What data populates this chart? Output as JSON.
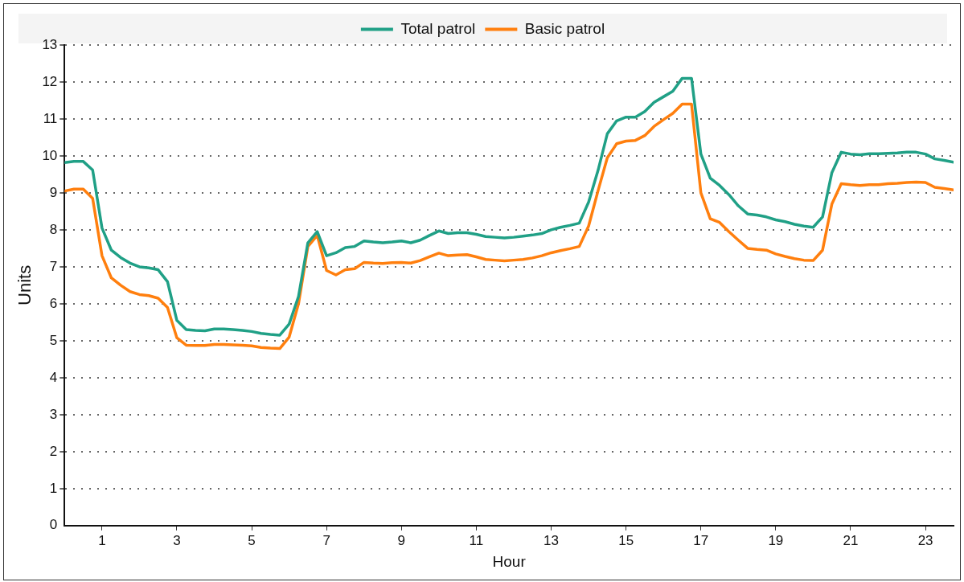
{
  "chart_data": {
    "type": "line",
    "xlabel": "Hour",
    "ylabel": "Units",
    "x": [
      0,
      0.25,
      0.5,
      0.75,
      1,
      1.25,
      1.5,
      1.75,
      2,
      2.25,
      2.5,
      2.75,
      3,
      3.25,
      3.5,
      3.75,
      4,
      4.25,
      4.5,
      4.75,
      5,
      5.25,
      5.5,
      5.75,
      6,
      6.25,
      6.5,
      6.75,
      7,
      7.25,
      7.5,
      7.75,
      8,
      8.25,
      8.5,
      8.75,
      9,
      9.25,
      9.5,
      9.75,
      10,
      10.25,
      10.5,
      10.75,
      11,
      11.25,
      11.5,
      11.75,
      12,
      12.25,
      12.5,
      12.75,
      13,
      13.25,
      13.5,
      13.75,
      14,
      14.25,
      14.5,
      14.75,
      15,
      15.25,
      15.5,
      15.75,
      16,
      16.25,
      16.5,
      16.75,
      17,
      17.25,
      17.5,
      17.75,
      18,
      18.25,
      18.5,
      18.75,
      19,
      19.25,
      19.5,
      19.75,
      20,
      20.25,
      20.5,
      20.75,
      21,
      21.25,
      21.5,
      21.75,
      22,
      22.25,
      22.5,
      22.75,
      23,
      23.25,
      23.5,
      23.75
    ],
    "series": [
      {
        "name": "Total patrol",
        "color": "#20a086",
        "values": [
          9.82,
          9.85,
          9.85,
          9.62,
          8.05,
          7.45,
          7.25,
          7.1,
          7.0,
          6.97,
          6.92,
          6.6,
          5.55,
          5.3,
          5.28,
          5.27,
          5.32,
          5.32,
          5.3,
          5.28,
          5.25,
          5.2,
          5.17,
          5.15,
          5.45,
          6.2,
          7.65,
          7.95,
          7.3,
          7.38,
          7.52,
          7.55,
          7.7,
          7.67,
          7.65,
          7.67,
          7.7,
          7.65,
          7.72,
          7.85,
          7.97,
          7.9,
          7.92,
          7.92,
          7.88,
          7.82,
          7.8,
          7.78,
          7.8,
          7.83,
          7.86,
          7.9,
          8.0,
          8.07,
          8.12,
          8.18,
          8.75,
          9.6,
          10.6,
          10.95,
          11.05,
          11.05,
          11.2,
          11.45,
          11.6,
          11.75,
          12.1,
          12.1,
          10.05,
          9.4,
          9.2,
          8.95,
          8.65,
          8.43,
          8.4,
          8.35,
          8.27,
          8.22,
          8.15,
          8.1,
          8.07,
          8.35,
          9.55,
          10.1,
          10.05,
          10.03,
          10.06,
          10.06,
          10.07,
          10.08,
          10.1,
          10.1,
          10.05,
          9.92,
          9.88,
          9.83
        ]
      },
      {
        "name": "Basic patrol",
        "color": "#ff7f0e",
        "values": [
          9.05,
          9.1,
          9.1,
          8.85,
          7.3,
          6.7,
          6.5,
          6.33,
          6.25,
          6.22,
          6.15,
          5.9,
          5.08,
          4.88,
          4.87,
          4.87,
          4.9,
          4.9,
          4.89,
          4.88,
          4.86,
          4.82,
          4.8,
          4.79,
          5.1,
          6.0,
          7.55,
          7.85,
          6.9,
          6.78,
          6.92,
          6.95,
          7.12,
          7.1,
          7.09,
          7.11,
          7.12,
          7.1,
          7.17,
          7.27,
          7.37,
          7.3,
          7.32,
          7.33,
          7.27,
          7.2,
          7.18,
          7.16,
          7.18,
          7.2,
          7.24,
          7.3,
          7.38,
          7.44,
          7.49,
          7.55,
          8.1,
          9.05,
          9.95,
          10.33,
          10.4,
          10.42,
          10.55,
          10.8,
          10.98,
          11.15,
          11.4,
          11.4,
          9.0,
          8.3,
          8.2,
          7.95,
          7.72,
          7.5,
          7.47,
          7.45,
          7.35,
          7.28,
          7.22,
          7.18,
          7.17,
          7.45,
          8.7,
          9.25,
          9.22,
          9.2,
          9.22,
          9.22,
          9.25,
          9.26,
          9.28,
          9.29,
          9.28,
          9.15,
          9.12,
          9.08
        ]
      }
    ],
    "xlim": [
      0,
      23.75
    ],
    "xticks": [
      1,
      3,
      5,
      7,
      9,
      11,
      13,
      15,
      17,
      19,
      21,
      23
    ],
    "ylim": [
      0,
      13
    ],
    "yticks": [
      0,
      1,
      2,
      3,
      4,
      5,
      6,
      7,
      8,
      9,
      10,
      11,
      12,
      13
    ],
    "grid": "y",
    "legend": "top",
    "marker": "none",
    "line_style": "solid"
  }
}
